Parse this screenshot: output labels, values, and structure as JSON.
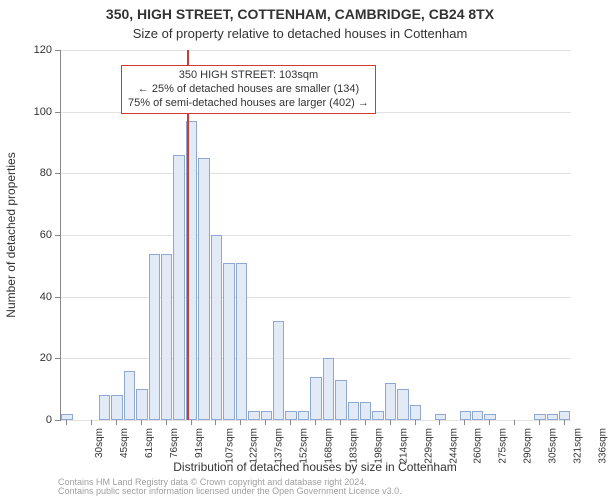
{
  "chart": {
    "type": "histogram",
    "title": "350, HIGH STREET, COTTENHAM, CAMBRIDGE, CB24 8TX",
    "subtitle": "Size of property relative to detached houses in Cottenham",
    "ylabel": "Number of detached properties",
    "xlabel": "Distribution of detached houses by size in Cottenham",
    "background_color": "#ffffff",
    "grid_color": "#e2e2e2",
    "axis_color": "#888888",
    "tick_font_size": 11,
    "label_font_size": 12,
    "title_font_size": 14,
    "y": {
      "min": 0,
      "max": 120,
      "ticks": [
        0,
        20,
        40,
        60,
        80,
        100,
        120
      ]
    },
    "x": {
      "tick_labels": [
        "30sqm",
        "45sqm",
        "61sqm",
        "76sqm",
        "91sqm",
        "107sqm",
        "122sqm",
        "137sqm",
        "152sqm",
        "168sqm",
        "183sqm",
        "198sqm",
        "214sqm",
        "229sqm",
        "244sqm",
        "260sqm",
        "275sqm",
        "290sqm",
        "305sqm",
        "321sqm",
        "336sqm"
      ]
    },
    "bars": {
      "fill": "#e2eaf6",
      "stroke": "#8da8d6",
      "stroke_width": 1,
      "width_frac": 0.92,
      "values": [
        2,
        0,
        0,
        8,
        8,
        16,
        10,
        54,
        54,
        86,
        97,
        85,
        60,
        51,
        51,
        3,
        3,
        32,
        3,
        3,
        14,
        20,
        13,
        6,
        6,
        3,
        12,
        10,
        5,
        0,
        2,
        0,
        3,
        3,
        2,
        0,
        0,
        0,
        2,
        2,
        3
      ]
    },
    "marker": {
      "x_value": 103,
      "x_min": 30,
      "x_step": 7.6,
      "color": "#d33a2f",
      "width": 2
    },
    "annotation": {
      "lines": [
        "350 HIGH STREET: 103sqm",
        "← 25% of detached houses are smaller (134)",
        "75% of semi-detached houses are larger (402) →"
      ],
      "border_color": "#d33a2f",
      "bg": "#ffffff",
      "font_size": 11
    },
    "footer": {
      "line1": "Contains HM Land Registry data © Crown copyright and database right 2024.",
      "line2": "Contains public sector information licensed under the Open Government Licence v3.0.",
      "color": "#a0a0a0",
      "font_size": 9
    }
  }
}
